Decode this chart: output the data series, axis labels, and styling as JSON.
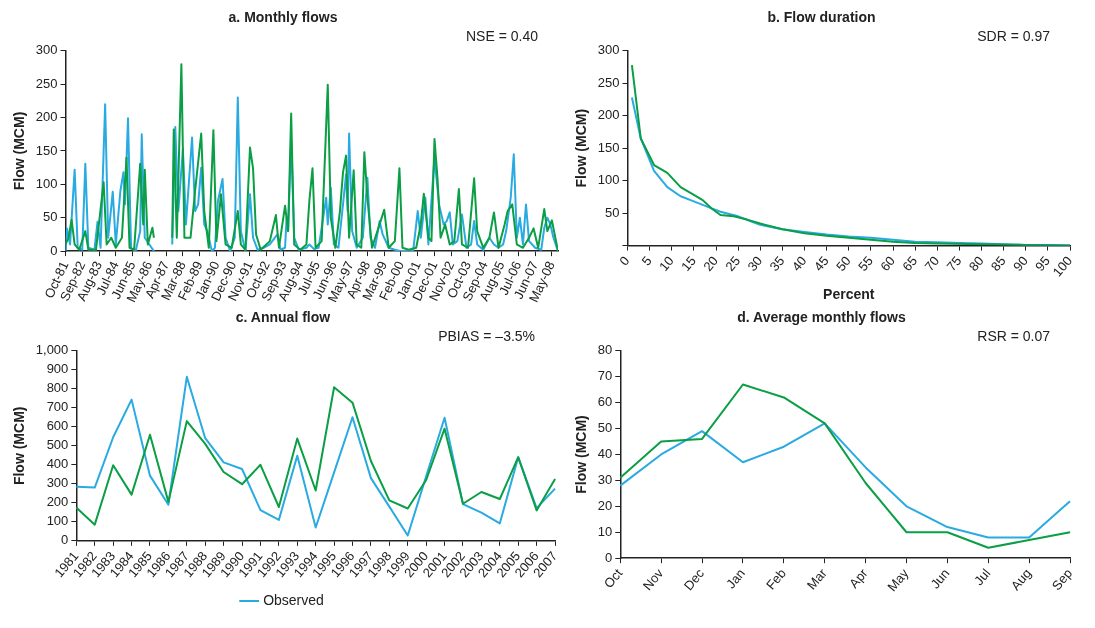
{
  "chart_data": [
    {
      "type": "line",
      "title": "a. Monthly flows",
      "ylabel": "Flow (MCM)",
      "annotations": [
        "NSE = 0.40"
      ],
      "marker": "none",
      "xlim": [
        "1981-10",
        "2008-09"
      ],
      "ylim": [
        0,
        300
      ],
      "yticks": [
        0,
        50,
        100,
        150,
        200,
        250,
        300
      ],
      "xticks": [
        {
          "value": "1981-10",
          "label": "Oct-81"
        },
        {
          "value": "1982-09",
          "label": "Sep-82"
        },
        {
          "value": "1983-08",
          "label": "Aug-83"
        },
        {
          "value": "1984-07",
          "label": "Jul-84"
        },
        {
          "value": "1985-06",
          "label": "Jun-85"
        },
        {
          "value": "1986-05",
          "label": "May-86"
        },
        {
          "value": "1987-04",
          "label": "Apr-87"
        },
        {
          "value": "1988-03",
          "label": "Mar-88"
        },
        {
          "value": "1989-02",
          "label": "Feb-89"
        },
        {
          "value": "1990-01",
          "label": "Jan-90"
        },
        {
          "value": "1991-11",
          "label": "Nov-91"
        },
        {
          "value": "1990-12",
          "label": "Dec-90"
        },
        {
          "value": "1992-10",
          "label": "Oct-92"
        },
        {
          "value": "1993-09",
          "label": "Sep-93"
        },
        {
          "value": "1994-08",
          "label": "Aug-94"
        },
        {
          "value": "1995-07",
          "label": "Jul-95"
        },
        {
          "value": "1996-06",
          "label": "Jun-96"
        },
        {
          "value": "1997-05",
          "label": "May-97"
        },
        {
          "value": "1998-04",
          "label": "Apr-98"
        },
        {
          "value": "1999-03",
          "label": "Mar-99"
        },
        {
          "value": "2000-02",
          "label": "Feb-00"
        },
        {
          "value": "2001-01",
          "label": "Jan-01"
        },
        {
          "value": "2001-12",
          "label": "Dec-01"
        },
        {
          "value": "2002-11",
          "label": "Nov-02"
        },
        {
          "value": "2003-10",
          "label": "Oct-03"
        },
        {
          "value": "2004-09",
          "label": "Sep-04"
        },
        {
          "value": "2005-08",
          "label": "Aug-05"
        },
        {
          "value": "2006-07",
          "label": "Jul-06"
        },
        {
          "value": "2007-06",
          "label": "Jun-07"
        },
        {
          "value": "2008-05",
          "label": "May-08"
        }
      ],
      "series": [
        {
          "color": "#0a9e45",
          "x": [
            "1981-10",
            "1981-12",
            "1982-02",
            "1982-04",
            "1982-07",
            "1982-11",
            "1983-01",
            "1983-06",
            "1983-11",
            "1984-01",
            "1984-04",
            "1984-07",
            "1984-11",
            "1985-02",
            "1985-04",
            "1985-07",
            "1985-11",
            "1986-01",
            "1986-02",
            "1986-04",
            "1986-07",
            "1986-08",
            "1987-02",
            "1987-08",
            "1987-09",
            "1987-11",
            "1988-02",
            "1988-04",
            "1988-08",
            "1988-11",
            "1989-03",
            "1989-05",
            "1989-08",
            "1989-11",
            "1990-01",
            "1990-04",
            "1990-07",
            "1990-11",
            "1991-03",
            "1991-05",
            "1991-08",
            "1991-11",
            "1992-01",
            "1992-03",
            "1992-06",
            "1992-12",
            "1993-04",
            "1993-06",
            "1993-10",
            "1993-12",
            "1994-02",
            "1994-04",
            "1994-08",
            "1994-12",
            "1995-02",
            "1995-04",
            "1995-06",
            "1995-10",
            "1996-02",
            "1996-04",
            "1996-07",
            "1996-10",
            "1996-12",
            "1997-02",
            "1997-04",
            "1997-07",
            "1997-09",
            "1997-12",
            "1998-02",
            "1998-04",
            "1998-07",
            "1998-12",
            "1999-03",
            "1999-06",
            "1999-10",
            "2000-01",
            "2000-03",
            "2000-07",
            "2000-12",
            "2001-03",
            "2001-05",
            "2001-08",
            "2001-10",
            "2001-12",
            "2002-02",
            "2002-04",
            "2002-07",
            "2002-10",
            "2003-01",
            "2003-04",
            "2003-06",
            "2003-10",
            "2004-02",
            "2004-04",
            "2004-08",
            "2004-12",
            "2005-03",
            "2005-06",
            "2005-10",
            "2005-12",
            "2006-03",
            "2006-06",
            "2006-10",
            "2007-02",
            "2007-05",
            "2007-08",
            "2007-12",
            "2008-02",
            "2008-05",
            "2008-09"
          ],
          "values": [
            10,
            20,
            47,
            10,
            2,
            30,
            2,
            2,
            103,
            10,
            20,
            5,
            20,
            140,
            5,
            2,
            131,
            40,
            122,
            10,
            35,
            20,
            null,
            20,
            182,
            20,
            280,
            20,
            20,
            90,
            176,
            60,
            5,
            181,
            15,
            85,
            10,
            5,
            60,
            10,
            2,
            155,
            124,
            25,
            2,
            15,
            54,
            5,
            68,
            30,
            206,
            10,
            2,
            10,
            77,
            124,
            5,
            15,
            249,
            50,
            5,
            60,
            118,
            143,
            20,
            121,
            10,
            5,
            148,
            80,
            5,
            40,
            62,
            5,
            15,
            124,
            5,
            2,
            5,
            40,
            86,
            20,
            15,
            168,
            108,
            20,
            40,
            10,
            15,
            93,
            10,
            5,
            109,
            30,
            5,
            20,
            58,
            5,
            40,
            60,
            70,
            10,
            5,
            20,
            34,
            5,
            63,
            30,
            46,
            0
          ]
        },
        {
          "color": "#29aae1",
          "x": [
            "1981-10",
            "1981-11",
            "1982-01",
            "1982-04",
            "1982-06",
            "1982-09",
            "1982-11",
            "1983-01",
            "1983-05",
            "1983-07",
            "1983-09",
            "1983-12",
            "1984-02",
            "1984-05",
            "1984-07",
            "1984-10",
            "1984-12",
            "1985-01",
            "1985-03",
            "1985-05",
            "1985-08",
            "1985-11",
            "1985-12",
            "1986-02",
            "1986-05",
            "1986-08",
            "1987-02",
            "1987-08",
            "1987-10",
            "1987-12",
            "1988-03",
            "1988-05",
            "1988-09",
            "1988-11",
            "1989-01",
            "1989-03",
            "1989-05",
            "1989-07",
            "1989-10",
            "1989-12",
            "1990-02",
            "1990-05",
            "1990-07",
            "1990-10",
            "1991-01",
            "1991-03",
            "1991-05",
            "1991-08",
            "1991-11",
            "1992-01",
            "1992-04",
            "1992-08",
            "1992-12",
            "1993-05",
            "1993-07",
            "1993-10",
            "1993-11",
            "1993-12",
            "1994-02",
            "1994-04",
            "1994-07",
            "1994-12",
            "1995-02",
            "1995-05",
            "1995-08",
            "1996-01",
            "1996-02",
            "1996-04",
            "1996-06",
            "1996-09",
            "1996-12",
            "1997-02",
            "1997-03",
            "1997-04",
            "1997-06",
            "1997-09",
            "1998-01",
            "1998-04",
            "1998-06",
            "1998-09",
            "1998-12",
            "1999-02",
            "1999-06",
            "1999-10",
            "2000-02",
            "2000-10",
            "2001-01",
            "2001-03",
            "2001-06",
            "2001-08",
            "2001-12",
            "2002-03",
            "2002-06",
            "2002-08",
            "2002-10",
            "2002-12",
            "2003-03",
            "2003-06",
            "2003-09",
            "2003-12",
            "2004-02",
            "2004-04",
            "2004-08",
            "2004-12",
            "2005-03",
            "2005-06",
            "2005-09",
            "2005-11",
            "2006-02",
            "2006-04",
            "2006-06",
            "2006-08",
            "2006-10",
            "2006-12",
            "2007-02",
            "2007-06",
            "2007-10",
            "2007-12",
            "2008-02",
            "2008-04",
            "2008-06",
            "2008-09"
          ],
          "values": [
            0,
            34,
            10,
            122,
            5,
            2,
            131,
            5,
            2,
            44,
            5,
            220,
            20,
            89,
            10,
            90,
            118,
            70,
            199,
            5,
            0,
            30,
            175,
            20,
            10,
            0,
            null,
            10,
            186,
            60,
            153,
            40,
            170,
            60,
            70,
            125,
            40,
            30,
            0,
            5,
            75,
            108,
            20,
            0,
            20,
            230,
            30,
            0,
            85,
            20,
            2,
            5,
            10,
            25,
            2,
            5,
            50,
            30,
            166,
            20,
            2,
            5,
            10,
            3,
            5,
            80,
            40,
            95,
            10,
            5,
            70,
            115,
            60,
            176,
            30,
            5,
            20,
            110,
            20,
            5,
            45,
            25,
            5,
            2,
            0,
            0,
            60,
            20,
            80,
            10,
            140,
            70,
            40,
            45,
            58,
            10,
            15,
            55,
            5,
            10,
            45,
            10,
            2,
            20,
            10,
            5,
            10,
            30,
            80,
            145,
            20,
            50,
            10,
            70,
            15,
            5,
            2,
            35,
            50,
            40,
            20,
            0
          ]
        }
      ]
    },
    {
      "type": "line",
      "title": "b. Flow duration",
      "xlabel": "Percent",
      "ylabel": "Flow (MCM)",
      "annotations": [
        "SDR = 0.97"
      ],
      "marker": "none",
      "xlim": [
        0,
        100
      ],
      "xticks": [
        0,
        5,
        10,
        15,
        20,
        25,
        30,
        35,
        40,
        45,
        50,
        55,
        60,
        65,
        70,
        75,
        80,
        85,
        90,
        95,
        100
      ],
      "ylim": [
        0,
        300
      ],
      "yticks": [
        {
          "value": 0,
          "label": null
        },
        50,
        100,
        150,
        200,
        250,
        300
      ],
      "series": [
        {
          "color": "#0a9e45",
          "x": [
            1,
            3,
            6,
            9,
            12,
            15,
            17,
            19,
            21,
            24,
            27,
            30,
            35,
            40,
            45,
            50,
            55,
            60,
            65,
            70,
            80,
            90,
            100
          ],
          "values": [
            278,
            165,
            124,
            112,
            90,
            78,
            70,
            57,
            47,
            45,
            40,
            34,
            25,
            19,
            15,
            12,
            9,
            6,
            4,
            3,
            2,
            1,
            0
          ]
        },
        {
          "color": "#29aae1",
          "x": [
            1,
            3,
            6,
            9,
            12,
            15,
            18,
            21,
            25,
            28,
            30,
            35,
            40,
            45,
            50,
            55,
            60,
            65,
            70,
            75,
            80,
            85,
            90,
            95,
            100
          ],
          "values": [
            228,
            165,
            115,
            90,
            76,
            68,
            60,
            52,
            45,
            37,
            32,
            25,
            21,
            17,
            14,
            12,
            9,
            6,
            5,
            4,
            3,
            2,
            1,
            1,
            0
          ]
        }
      ]
    },
    {
      "type": "line",
      "title": "c. Annual flow",
      "ylabel": "Flow (MCM)",
      "annotations": [
        "PBIAS = –3.5%"
      ],
      "marker": "none",
      "legend": "bottom",
      "categories": [
        "1981",
        "1982",
        "1983",
        "1984",
        "1985",
        "1986",
        "1987",
        "1988",
        "1989",
        "1990",
        "1991",
        "1992",
        "1993",
        "1994",
        "1995",
        "1996",
        "1997",
        "1998",
        "1999",
        "2000",
        "2001",
        "2002",
        "2003",
        "2004",
        "2005",
        "2006",
        "2007"
      ],
      "ylim": [
        0,
        1000
      ],
      "yticks": [
        0,
        100,
        200,
        300,
        400,
        500,
        600,
        700,
        800,
        900,
        {
          "value": 1000,
          "label": "1,000"
        }
      ],
      "series": [
        {
          "color": "#0a9e45",
          "values": [
            175,
            85,
            398,
            243,
            558,
            205,
            630,
            510,
            362,
            298,
            400,
            178,
            538,
            265,
            808,
            727,
            420,
            213,
            170,
            320,
            590,
            195,
            257,
            220,
            440,
            160,
            325
          ]
        },
        {
          "name": "Observed",
          "color": "#29aae1",
          "values": [
            285,
            280,
            545,
            743,
            343,
            190,
            863,
            540,
            413,
            378,
            162,
            110,
            448,
            70,
            360,
            650,
            330,
            180,
            28,
            340,
            648,
            193,
            148,
            92,
            440,
            172,
            275
          ]
        }
      ]
    },
    {
      "type": "line",
      "title": "d. Average monthly flows",
      "ylabel": "Flow (MCM)",
      "annotations": [
        "RSR = 0.07"
      ],
      "marker": "none",
      "categories": [
        "Oct",
        "Nov",
        "Dec",
        "Jan",
        "Feb",
        "Mar",
        "Apr",
        "May",
        "Jun",
        "Jul",
        "Aug",
        "Sep"
      ],
      "ylim": [
        0,
        80
      ],
      "yticks": [
        0,
        10,
        20,
        30,
        40,
        50,
        60,
        70,
        80
      ],
      "series": [
        {
          "color": "#0a9e45",
          "values": [
            31,
            45,
            46,
            67,
            62,
            52,
            29,
            10,
            10,
            4,
            7,
            10
          ]
        },
        {
          "color": "#29aae1",
          "values": [
            28,
            40,
            49,
            37,
            43,
            52,
            35,
            20,
            12,
            8,
            8,
            22
          ]
        }
      ]
    }
  ]
}
